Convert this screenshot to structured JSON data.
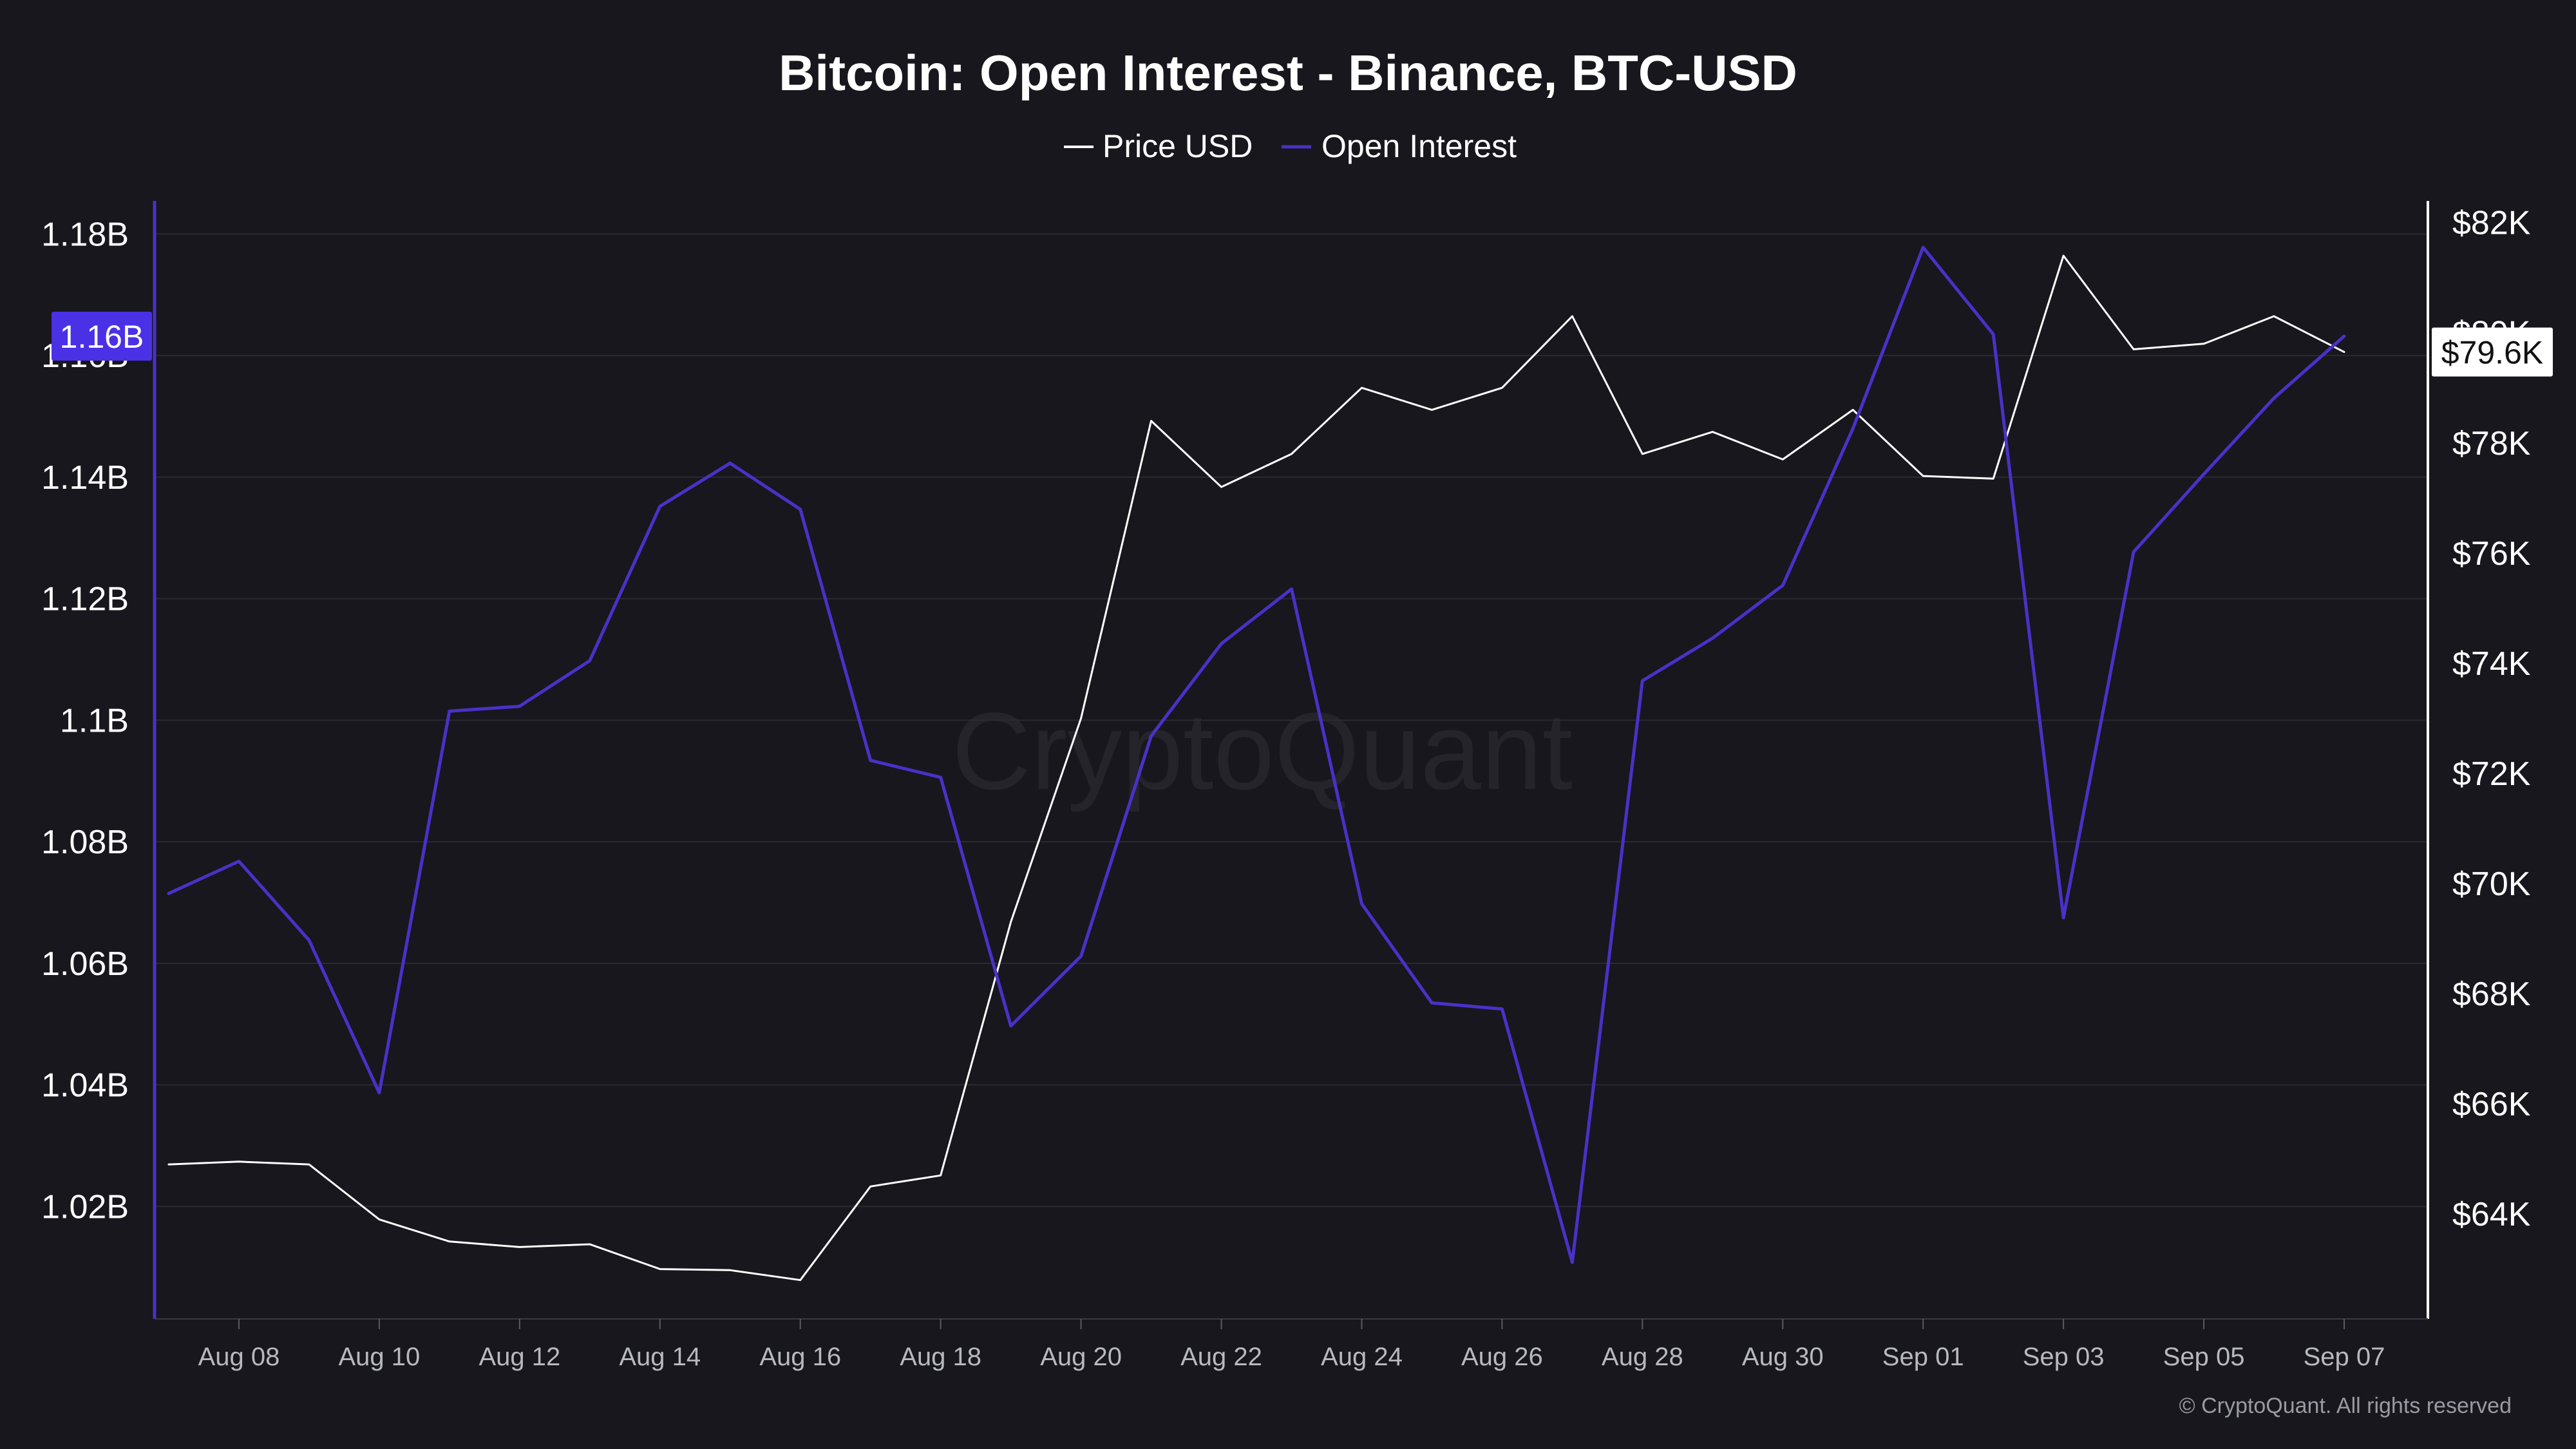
{
  "chart_data": {
    "type": "line",
    "title": "Bitcoin: Open Interest - Binance, BTC-USD",
    "legend": {
      "placement": "top-center"
    },
    "x": [
      "Aug 07",
      "Aug 08",
      "Aug 09",
      "Aug 10",
      "Aug 11",
      "Aug 12",
      "Aug 13",
      "Aug 14",
      "Aug 15",
      "Aug 16",
      "Aug 17",
      "Aug 18",
      "Aug 19",
      "Aug 20",
      "Aug 21",
      "Aug 22",
      "Aug 23",
      "Aug 24",
      "Aug 25",
      "Aug 26",
      "Aug 27",
      "Aug 28",
      "Aug 29",
      "Aug 30",
      "Aug 31",
      "Sep 01",
      "Sep 02",
      "Sep 03",
      "Sep 04",
      "Sep 05",
      "Sep 06",
      "Sep 07"
    ],
    "x_tick_labels": [
      "Aug 08",
      "Aug 10",
      "Aug 12",
      "Aug 14",
      "Aug 16",
      "Aug 18",
      "Aug 20",
      "Aug 22",
      "Aug 24",
      "Aug 26",
      "Aug 28",
      "Aug 30",
      "Sep 01",
      "Sep 03",
      "Sep 05",
      "Sep 07"
    ],
    "series": [
      {
        "name": "Price USD",
        "axis": "right",
        "color": "#ffffff",
        "values": [
          64900,
          64950,
          64900,
          63900,
          63500,
          63400,
          63450,
          63000,
          62980,
          62800,
          64500,
          64700,
          69300,
          73000,
          78400,
          77200,
          77800,
          79000,
          78600,
          79000,
          80300,
          77800,
          78200,
          77700,
          78600,
          77400,
          77350,
          81400,
          79700,
          79800,
          80300,
          79650
        ]
      },
      {
        "name": "Open Interest",
        "axis": "left",
        "color": "#4a31c8",
        "values": [
          1.0715,
          1.0768,
          1.0638,
          1.0387,
          1.1015,
          1.1023,
          1.1098,
          1.1352,
          1.1423,
          1.1347,
          1.0934,
          1.0906,
          1.0497,
          1.0612,
          1.0974,
          1.1126,
          1.1216,
          1.0698,
          1.0535,
          1.0525,
          1.0108,
          1.1065,
          1.1135,
          1.1222,
          1.148,
          1.1778,
          1.1635,
          1.0675,
          1.1277,
          1.1405,
          1.153,
          1.1632
        ]
      }
    ],
    "y_left": {
      "ylim": [
        1.0015,
        1.1846
      ],
      "ticks": [
        1.02,
        1.04,
        1.06,
        1.08,
        1.1,
        1.12,
        1.14,
        1.16,
        1.18
      ],
      "tick_labels": [
        "1.02B",
        "1.04B",
        "1.06B",
        "1.08B",
        "1.1B",
        "1.12B",
        "1.14B",
        "1.16B",
        "1.18B"
      ],
      "current_label": "1.16B",
      "current_value": 1.1632
    },
    "y_right": {
      "ylim": [
        62095,
        82300
      ],
      "ticks": [
        64000,
        66000,
        68000,
        70000,
        72000,
        74000,
        76000,
        78000,
        80000,
        82000
      ],
      "tick_labels": [
        "$64K",
        "$66K",
        "$68K",
        "$70K",
        "$72K",
        "$74K",
        "$76K",
        "$78K",
        "$80K",
        "$82K"
      ],
      "current_label": "$79.6K",
      "current_value": 79650
    },
    "grid": true,
    "watermark": "CryptoQuant",
    "copyright": "© CryptoQuant. All rights reserved"
  }
}
